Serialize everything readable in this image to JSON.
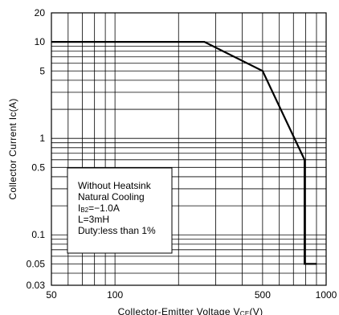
{
  "chart_data": {
    "type": "line",
    "xlabel": "Collector-Emitter Voltage V",
    "xlabel_sub": "CE",
    "xlabel_unit": "(V)",
    "ylabel": "Collector Current Ic(A)",
    "x_scale": "log",
    "y_scale": "log",
    "xlim": [
      50,
      1000
    ],
    "ylim": [
      0.03,
      20
    ],
    "x_ticks": [
      {
        "value": 50,
        "label": "50"
      },
      {
        "value": 100,
        "label": "100"
      },
      {
        "value": 500,
        "label": "500"
      },
      {
        "value": 1000,
        "label": "1000"
      }
    ],
    "y_ticks": [
      {
        "value": 0.03,
        "label": "0.03"
      },
      {
        "value": 0.05,
        "label": "0.05"
      },
      {
        "value": 0.1,
        "label": "0.1"
      },
      {
        "value": 0.5,
        "label": "0.5"
      },
      {
        "value": 1,
        "label": "1"
      },
      {
        "value": 5,
        "label": "5"
      },
      {
        "value": 10,
        "label": "10"
      },
      {
        "value": 20,
        "label": "20"
      }
    ],
    "grid": true,
    "series": [
      {
        "x": [
          50,
          265,
          500,
          790,
          790,
          900
        ],
        "y": [
          10,
          10,
          5,
          0.6,
          0.05,
          0.05
        ]
      }
    ],
    "annotation": {
      "lines": [
        {
          "text": "Without Heatsink"
        },
        {
          "text": "Natural Cooling"
        },
        {
          "prefix": "I",
          "sub": "B2",
          "suffix": "=−1.0A"
        },
        {
          "text": "L=3mH"
        },
        {
          "text": "Duty:less than 1%"
        }
      ]
    }
  }
}
